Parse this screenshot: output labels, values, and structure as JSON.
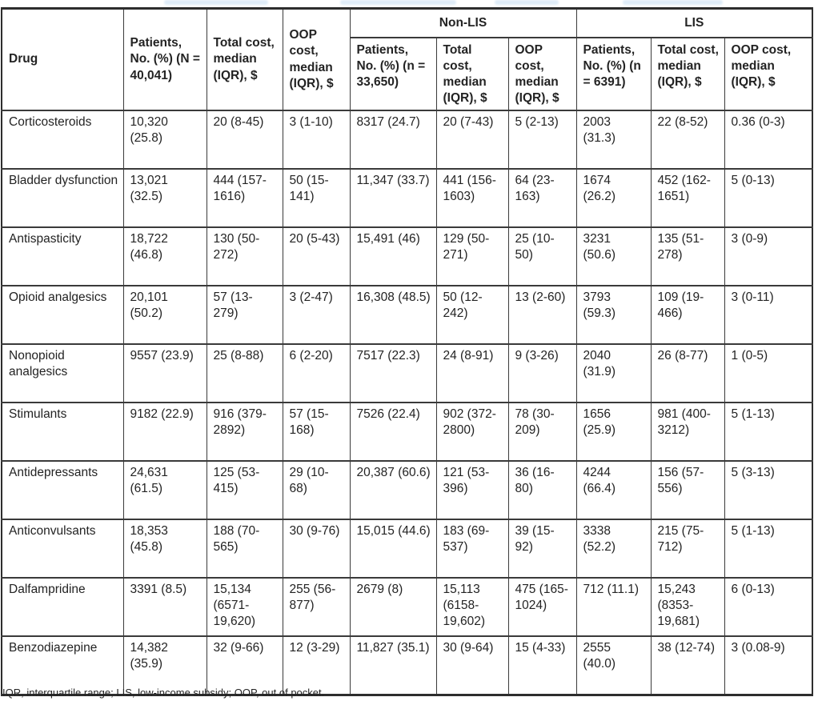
{
  "table": {
    "header": {
      "drug": "Drug",
      "patients_all": "Patients, No. (%) (N = 40,041)",
      "total_cost": "Total cost, median (IQR), $",
      "oop_cost": "OOP cost, median (IQR), $",
      "group_nonlis": "Non-LIS",
      "group_lis": "LIS"
    },
    "subheaders": [
      "Patients, No. (%) (n = 33,650)",
      "Total cost, median (IQR), $",
      "OOP cost, median (IQR), $",
      "Patients, No. (%) (n = 6391)",
      "Total cost, median (IQR), $",
      "OOP cost, median (IQR), $"
    ],
    "rows": [
      [
        "Corticosteroids",
        "10,320 (25.8)",
        "20 (8-45)",
        "3 (1-10)",
        "8317 (24.7)",
        "20 (7-43)",
        "5 (2-13)",
        "2003 (31.3)",
        "22 (8-52)",
        "0.36 (0-3)"
      ],
      [
        "Bladder dysfunction",
        "13,021 (32.5)",
        "444 (157-1616)",
        "50 (15-141)",
        "11,347 (33.7)",
        "441 (156-1603)",
        "64 (23-163)",
        "1674 (26.2)",
        "452 (162-1651)",
        "5 (0-13)"
      ],
      [
        "Antispasticity",
        "18,722 (46.8)",
        "130 (50-272)",
        "20 (5-43)",
        "15,491 (46)",
        "129 (50-271)",
        "25 (10-50)",
        "3231 (50.6)",
        "135 (51-278)",
        "3 (0-9)"
      ],
      [
        "Opioid analgesics",
        "20,101 (50.2)",
        "57 (13-279)",
        "3 (2-47)",
        "16,308 (48.5)",
        "50 (12-242)",
        "13 (2-60)",
        "3793 (59.3)",
        "109 (19-466)",
        "3 (0-11)"
      ],
      [
        "Nonopioid analgesics",
        "9557 (23.9)",
        "25 (8-88)",
        "6 (2-20)",
        "7517 (22.3)",
        "24 (8-91)",
        "9 (3-26)",
        "2040 (31.9)",
        "26 (8-77)",
        "1 (0-5)"
      ],
      [
        "Stimulants",
        "9182 (22.9)",
        "916 (379-2892)",
        "57 (15-168)",
        "7526 (22.4)",
        "902 (372-2800)",
        "78 (30-209)",
        "1656 (25.9)",
        "981 (400-3212)",
        "5 (1-13)"
      ],
      [
        "Antidepressants",
        "24,631 (61.5)",
        "125 (53-415)",
        "29 (10-68)",
        "20,387 (60.6)",
        "121 (53-396)",
        "36 (16-80)",
        "4244 (66.4)",
        "156 (57-556)",
        "5 (3-13)"
      ],
      [
        "Anticonvulsants",
        "18,353 (45.8)",
        "188 (70-565)",
        "30 (9-76)",
        "15,015 (44.6)",
        "183 (69-537)",
        "39 (15-92)",
        "3338 (52.2)",
        "215 (75-712)",
        "5 (1-13)"
      ],
      [
        "Dalfampridine",
        "3391 (8.5)",
        "15,134 (6571-19,620)",
        "255 (56-877)",
        "2679 (8)",
        "15,113 (6158-19,602)",
        "475 (165-1024)",
        "712 (11.1)",
        "15,243 (8353-19,681)",
        "6 (0-13)"
      ],
      [
        "Benzodiazepine",
        "14,382 (35.9)",
        "32 (9-66)",
        "12 (3-29)",
        "11,827 (35.1)",
        "30 (9-64)",
        "15 (4-33)",
        "2555 (40.0)",
        "38 (12-74)",
        "3 (0.08-9)"
      ]
    ]
  },
  "footnote": "IQR, interquartile range; LIS, low-income subsidy; OOP, out of pocket."
}
